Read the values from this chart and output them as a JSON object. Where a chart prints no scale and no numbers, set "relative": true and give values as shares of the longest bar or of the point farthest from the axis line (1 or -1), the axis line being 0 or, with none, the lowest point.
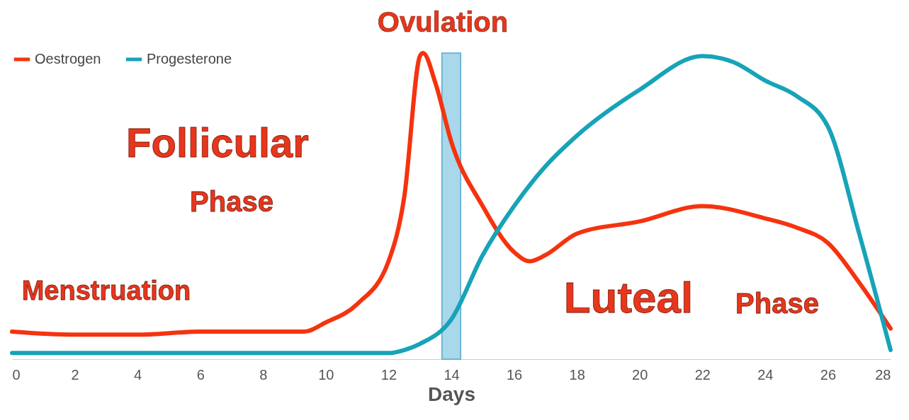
{
  "chart_data": {
    "type": "line",
    "xlabel": "Days",
    "relative": true,
    "xlim": [
      0,
      28
    ],
    "xticks": [
      0,
      2,
      4,
      6,
      8,
      10,
      12,
      14,
      16,
      18,
      20,
      22,
      24,
      26,
      28
    ],
    "tick_labels": "x",
    "legend": "top left",
    "series": [
      {
        "name": "Oestrogen",
        "color": "#f5330f",
        "x": [
          0,
          2,
          4,
          6,
          8,
          9.3,
          10,
          11,
          12,
          12.5,
          13,
          13.1,
          13.5,
          14,
          15,
          16,
          16.5,
          17,
          18,
          20,
          22,
          24,
          25,
          26,
          27,
          28
        ],
        "values": [
          0.09,
          0.08,
          0.08,
          0.09,
          0.09,
          0.09,
          0.12,
          0.18,
          0.32,
          0.53,
          0.99,
          1,
          0.9,
          0.71,
          0.5,
          0.35,
          0.32,
          0.34,
          0.41,
          0.45,
          0.5,
          0.46,
          0.43,
          0.38,
          0.25,
          0.1
        ]
      },
      {
        "name": "Progesterone",
        "color": "#17a3b8",
        "x": [
          0,
          4,
          8,
          10,
          12,
          12.5,
          13,
          14,
          15,
          16,
          17,
          18,
          20,
          22,
          23,
          24,
          25,
          26,
          27,
          28
        ],
        "values": [
          0.02,
          0.02,
          0.02,
          0.02,
          0.02,
          0.03,
          0.05,
          0.13,
          0.34,
          0.5,
          0.63,
          0.73,
          0.88,
          0.99,
          0.97,
          0.91,
          0.86,
          0.76,
          0.41,
          0.03
        ]
      }
    ],
    "bands": [
      {
        "axis": "x",
        "from": 13.7,
        "to": 14.3,
        "label": "Ovulation",
        "color": "#a8d8ea"
      }
    ],
    "annotations": [
      "Follicular Phase",
      "Menstruation",
      "Luteal Phase"
    ]
  }
}
